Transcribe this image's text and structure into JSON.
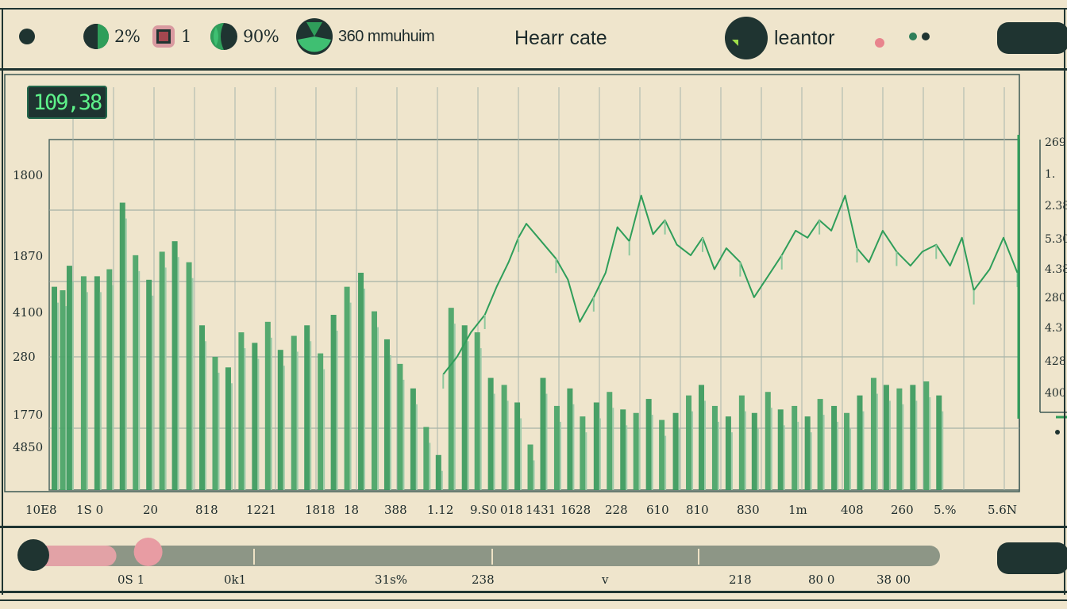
{
  "header": {
    "indicators": [
      {
        "label": "2%",
        "icon": "half-circle-icon"
      },
      {
        "label": "1",
        "icon": "square-stop-icon"
      },
      {
        "label": "90%",
        "icon": "leaf-gauge-icon"
      },
      {
        "label": "360 mmuhuim",
        "icon": "pie-gauge-icon"
      }
    ],
    "title": "Hearr cate",
    "title2": "leantor"
  },
  "readout": "109,38",
  "chart_data": {
    "type": "bar",
    "title": "Hearr cate",
    "y_labels_left": [
      "1800",
      "1870",
      "4100",
      "280",
      "1770",
      "4850"
    ],
    "y_labels_right": [
      "269",
      "1.",
      "2.38",
      "5.30",
      "4.38",
      "280",
      "4.3",
      "428",
      "400"
    ],
    "x_labels": [
      "10E8",
      "1S 0",
      "20",
      "818",
      "1221",
      "1818",
      "18",
      "388",
      "1.12",
      "9.S0",
      "018",
      "1431",
      "1628",
      "228",
      "610",
      "810",
      "830",
      "1m",
      "408",
      "260",
      "5.%",
      "5.6N"
    ],
    "bars": [
      [
        0.6,
        0.58
      ],
      [
        2.7,
        0.57
      ],
      [
        4.4,
        0.64
      ],
      [
        8.0,
        0.61
      ],
      [
        11.4,
        0.61
      ],
      [
        14.5,
        0.63
      ],
      [
        17.8,
        0.82
      ],
      [
        21.1,
        0.67
      ],
      [
        24.5,
        0.6
      ],
      [
        27.8,
        0.68
      ],
      [
        31.0,
        0.71
      ],
      [
        34.6,
        0.65
      ],
      [
        37.9,
        0.47
      ],
      [
        41.2,
        0.38
      ],
      [
        44.5,
        0.35
      ],
      [
        47.8,
        0.45
      ],
      [
        51.2,
        0.42
      ],
      [
        54.5,
        0.48
      ],
      [
        57.7,
        0.4
      ],
      [
        61.1,
        0.44
      ],
      [
        64.4,
        0.47
      ],
      [
        67.8,
        0.39
      ],
      [
        71.1,
        0.5
      ],
      [
        74.5,
        0.58
      ],
      [
        78.0,
        0.62
      ],
      [
        81.4,
        0.51
      ],
      [
        84.6,
        0.43
      ],
      [
        87.9,
        0.36
      ],
      [
        91.2,
        0.29
      ],
      [
        94.5,
        0.18
      ],
      [
        97.6,
        0.1
      ],
      [
        100.8,
        0.52
      ],
      [
        104.2,
        0.47
      ],
      [
        107.4,
        0.45
      ],
      [
        110.8,
        0.32
      ],
      [
        114.2,
        0.3
      ],
      [
        117.5,
        0.25
      ],
      [
        120.8,
        0.13
      ],
      [
        124.0,
        0.32
      ],
      [
        127.5,
        0.24
      ],
      [
        130.8,
        0.29
      ],
      [
        134.0,
        0.21
      ],
      [
        137.5,
        0.25
      ],
      [
        140.8,
        0.28
      ],
      [
        144.2,
        0.23
      ],
      [
        147.5,
        0.22
      ],
      [
        150.7,
        0.26
      ],
      [
        154.0,
        0.2
      ],
      [
        157.5,
        0.22
      ],
      [
        160.8,
        0.27
      ],
      [
        164.0,
        0.3
      ],
      [
        167.4,
        0.24
      ],
      [
        170.8,
        0.21
      ],
      [
        174.2,
        0.27
      ],
      [
        177.4,
        0.22
      ],
      [
        180.8,
        0.28
      ],
      [
        184.0,
        0.23
      ],
      [
        187.5,
        0.24
      ],
      [
        190.8,
        0.21
      ],
      [
        194.0,
        0.26
      ],
      [
        197.5,
        0.24
      ],
      [
        200.7,
        0.22
      ],
      [
        204.0,
        0.27
      ],
      [
        207.5,
        0.32
      ],
      [
        210.7,
        0.3
      ],
      [
        214.0,
        0.29
      ],
      [
        217.4,
        0.3
      ],
      [
        220.8,
        0.31
      ],
      [
        224.0,
        0.27
      ]
    ],
    "line": [
      [
        99.5,
        0.33
      ],
      [
        103.0,
        0.38
      ],
      [
        106.5,
        0.45
      ],
      [
        110.0,
        0.5
      ],
      [
        113.0,
        0.58
      ],
      [
        116.0,
        0.65
      ],
      [
        118.5,
        0.72
      ],
      [
        120.5,
        0.76
      ],
      [
        123.5,
        0.72
      ],
      [
        128.0,
        0.66
      ],
      [
        131.0,
        0.6
      ],
      [
        134.0,
        0.48
      ],
      [
        137.5,
        0.55
      ],
      [
        140.5,
        0.62
      ],
      [
        143.5,
        0.75
      ],
      [
        146.5,
        0.71
      ],
      [
        149.5,
        0.84
      ],
      [
        152.5,
        0.73
      ],
      [
        155.5,
        0.77
      ],
      [
        158.5,
        0.7
      ],
      [
        162.0,
        0.67
      ],
      [
        165.0,
        0.72
      ],
      [
        168.0,
        0.63
      ],
      [
        171.0,
        0.69
      ],
      [
        174.5,
        0.65
      ],
      [
        178.0,
        0.55
      ],
      [
        181.5,
        0.61
      ],
      [
        185.0,
        0.67
      ],
      [
        188.5,
        0.74
      ],
      [
        191.5,
        0.72
      ],
      [
        194.5,
        0.77
      ],
      [
        197.5,
        0.74
      ],
      [
        201.0,
        0.84
      ],
      [
        204.0,
        0.69
      ],
      [
        207.0,
        0.65
      ],
      [
        210.5,
        0.74
      ],
      [
        214.0,
        0.68
      ],
      [
        217.5,
        0.64
      ],
      [
        220.5,
        0.68
      ],
      [
        224.0,
        0.7
      ],
      [
        227.5,
        0.64
      ],
      [
        230.5,
        0.72
      ],
      [
        233.5,
        0.57
      ],
      [
        237.5,
        0.63
      ],
      [
        241.0,
        0.72
      ],
      [
        244.5,
        0.62
      ]
    ],
    "xlim": [
      0,
      245
    ],
    "ylim": [
      0,
      1
    ]
  },
  "scrubber": {
    "position": 0.09,
    "labels": [
      "0S 1",
      "0k1",
      "31s%",
      "238",
      "v",
      "218",
      "80 0",
      "38 00"
    ]
  }
}
